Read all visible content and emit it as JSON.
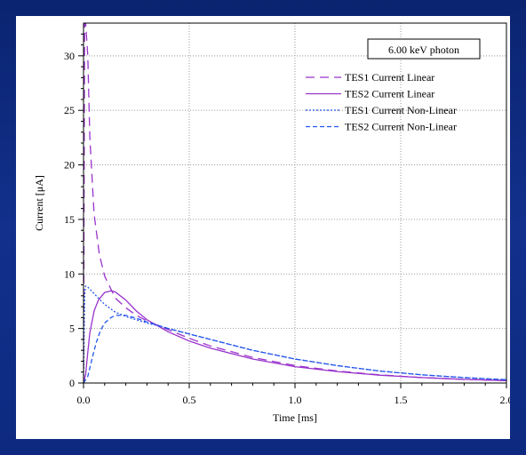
{
  "chart_data": {
    "type": "line",
    "xlabel": "Time [ms]",
    "ylabel": "Current [μA]",
    "xlim": [
      0,
      2.0
    ],
    "ylim": [
      0,
      33
    ],
    "xticks": [
      0.0,
      0.5,
      1.0,
      1.5,
      2.0
    ],
    "xtick_labels": [
      "0.0",
      "0.5",
      "1.0",
      "1.5",
      "2.0"
    ],
    "yticks": [
      0,
      5,
      10,
      15,
      20,
      25,
      30
    ],
    "ytick_labels": [
      "0",
      "5",
      "10",
      "15",
      "20",
      "25",
      "30"
    ],
    "grid": true,
    "legend_position": "top-right",
    "annotation": "6.00 keV photon",
    "series": [
      {
        "name": "TES1 Current Linear",
        "color": "#9933cc",
        "dash": "10,6",
        "x": [
          0.0,
          0.005,
          0.01,
          0.02,
          0.03,
          0.05,
          0.075,
          0.1,
          0.15,
          0.2,
          0.25,
          0.3,
          0.4,
          0.5,
          0.6,
          0.8,
          1.0,
          1.2,
          1.4,
          1.6,
          1.8,
          2.0
        ],
        "y": [
          0,
          33,
          33,
          30.0,
          22.5,
          15.5,
          11.8,
          9.8,
          7.8,
          6.9,
          6.2,
          5.7,
          4.9,
          4.1,
          3.4,
          2.35,
          1.6,
          1.1,
          0.75,
          0.5,
          0.33,
          0.22
        ]
      },
      {
        "name": "TES2 Current Linear",
        "color": "#9933cc",
        "dash": "",
        "x": [
          0.0,
          0.01,
          0.02,
          0.03,
          0.05,
          0.07,
          0.1,
          0.13,
          0.15,
          0.2,
          0.25,
          0.3,
          0.4,
          0.5,
          0.6,
          0.8,
          1.0,
          1.2,
          1.4,
          1.6,
          1.8,
          2.0
        ],
        "y": [
          0,
          0.8,
          2.8,
          4.6,
          6.6,
          7.6,
          8.3,
          8.45,
          8.35,
          7.6,
          6.6,
          5.8,
          4.7,
          3.85,
          3.2,
          2.2,
          1.5,
          1.05,
          0.72,
          0.5,
          0.33,
          0.22
        ]
      },
      {
        "name": "TES1 Current Non-Linear",
        "color": "#2255ee",
        "dash": "2,2",
        "x": [
          0.0,
          0.005,
          0.01,
          0.02,
          0.05,
          0.1,
          0.15,
          0.2,
          0.25,
          0.3,
          0.4,
          0.5,
          0.6,
          0.8,
          1.0,
          1.2,
          1.4,
          1.6,
          1.8,
          2.0
        ],
        "y": [
          0,
          8.0,
          8.9,
          8.8,
          8.2,
          7.2,
          6.5,
          6.1,
          5.8,
          5.5,
          5.0,
          4.5,
          4.0,
          3.0,
          2.2,
          1.6,
          1.1,
          0.75,
          0.5,
          0.3
        ]
      },
      {
        "name": "TES2 Current Non-Linear",
        "color": "#2255ee",
        "dash": "5,3",
        "x": [
          0.0,
          0.02,
          0.04,
          0.06,
          0.08,
          0.1,
          0.13,
          0.15,
          0.2,
          0.25,
          0.3,
          0.4,
          0.5,
          0.6,
          0.8,
          1.0,
          1.2,
          1.4,
          1.6,
          1.8,
          2.0
        ],
        "y": [
          0,
          0.6,
          2.2,
          3.7,
          4.8,
          5.5,
          6.0,
          6.2,
          6.2,
          5.95,
          5.6,
          5.0,
          4.5,
          4.0,
          3.0,
          2.2,
          1.6,
          1.1,
          0.75,
          0.5,
          0.3
        ]
      }
    ]
  }
}
